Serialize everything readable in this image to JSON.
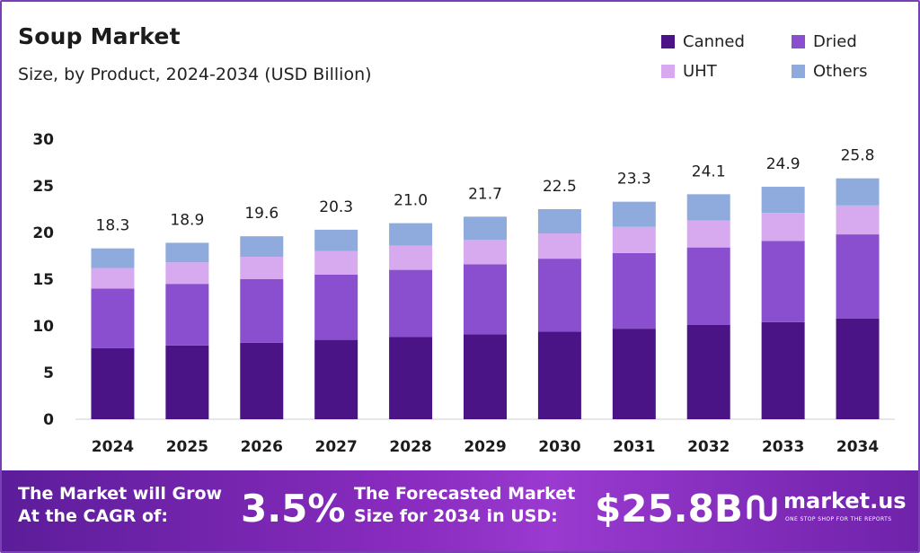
{
  "header": {
    "title": "Soup Market",
    "subtitle": "Size, by Product, 2024-2034 (USD Billion)"
  },
  "legend": {
    "items": [
      {
        "label": "Canned",
        "color": "#4a1486"
      },
      {
        "label": "Dried",
        "color": "#8a4fcf"
      },
      {
        "label": "UHT",
        "color": "#d7aaf0"
      },
      {
        "label": "Others",
        "color": "#8fabdd"
      }
    ]
  },
  "chart_data": {
    "type": "bar",
    "stacked": true,
    "title": "Soup Market",
    "subtitle": "Size, by Product, 2024-2034 (USD Billion)",
    "xlabel": "",
    "ylabel": "",
    "ylim": [
      0,
      30
    ],
    "yticks": [
      0,
      5,
      10,
      15,
      20,
      25,
      30
    ],
    "categories": [
      "2024",
      "2025",
      "2026",
      "2027",
      "2028",
      "2029",
      "2030",
      "2031",
      "2032",
      "2033",
      "2034"
    ],
    "series": [
      {
        "name": "Canned",
        "color": "#4a1486",
        "values": [
          7.6,
          7.9,
          8.2,
          8.5,
          8.8,
          9.1,
          9.4,
          9.7,
          10.1,
          10.4,
          10.8
        ]
      },
      {
        "name": "Dried",
        "color": "#8a4fcf",
        "values": [
          6.4,
          6.6,
          6.8,
          7.0,
          7.2,
          7.5,
          7.8,
          8.1,
          8.3,
          8.7,
          9.0
        ]
      },
      {
        "name": "UHT",
        "color": "#d7aaf0",
        "values": [
          2.2,
          2.3,
          2.4,
          2.5,
          2.6,
          2.6,
          2.7,
          2.8,
          2.9,
          3.0,
          3.1
        ]
      },
      {
        "name": "Others",
        "color": "#8fabdd",
        "values": [
          2.1,
          2.1,
          2.2,
          2.3,
          2.4,
          2.5,
          2.6,
          2.7,
          2.8,
          2.8,
          2.9
        ]
      }
    ],
    "totals": [
      "18.3",
      "18.9",
      "19.6",
      "20.3",
      "21.0",
      "21.7",
      "22.5",
      "23.3",
      "24.1",
      "24.9",
      "25.8"
    ],
    "grid": false,
    "legend_position": "top-right"
  },
  "banner": {
    "cagr_label": "The Market will Grow At the CAGR of:",
    "cagr_label_line1": "The Market will Grow",
    "cagr_label_line2": "At the CAGR of:",
    "cagr_value": "3.5%",
    "forecast_label_line1": "The Forecasted Market",
    "forecast_label_line2": "Size for 2034 in USD:",
    "forecast_value": "$25.8B",
    "brand_name": "market.us",
    "brand_tagline": "ONE STOP SHOP FOR THE REPORTS"
  }
}
